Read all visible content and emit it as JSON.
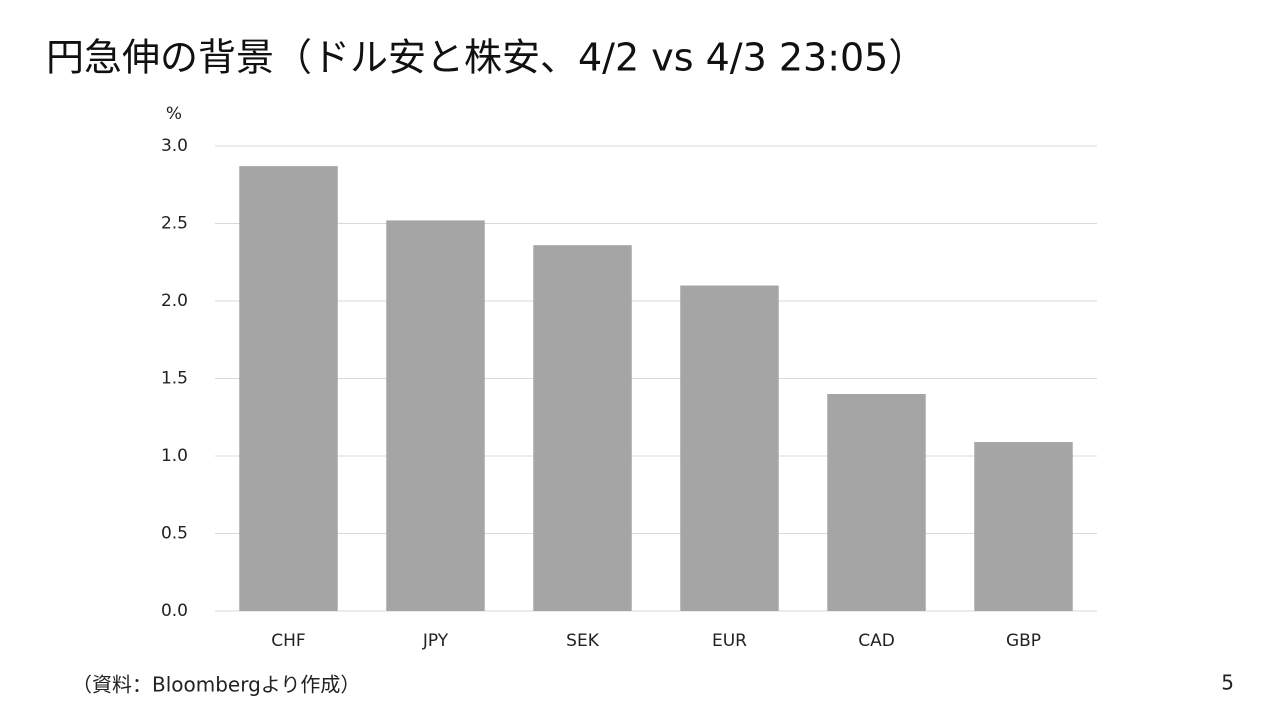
{
  "chart_data": {
    "type": "bar",
    "title": "円急伸の背景（ドル安と株安、4/2 vs 4/3 23:05）",
    "y_label": "%",
    "categories": [
      "CHF",
      "JPY",
      "SEK",
      "EUR",
      "CAD",
      "GBP"
    ],
    "values": [
      2.87,
      2.52,
      2.36,
      2.1,
      1.4,
      1.09
    ],
    "color": "#a5a5a5",
    "ylim": [
      0,
      3
    ],
    "yticks": [
      {
        "value": 0,
        "label": "0.0"
      },
      0.5,
      {
        "value": 1,
        "label": "1.0"
      },
      1.5,
      {
        "value": 2,
        "label": "2.0"
      },
      2.5,
      {
        "value": 3,
        "label": "3.0"
      }
    ],
    "grid": true
  },
  "source": "（資料：Bloombergより作成）",
  "page_number": "5"
}
